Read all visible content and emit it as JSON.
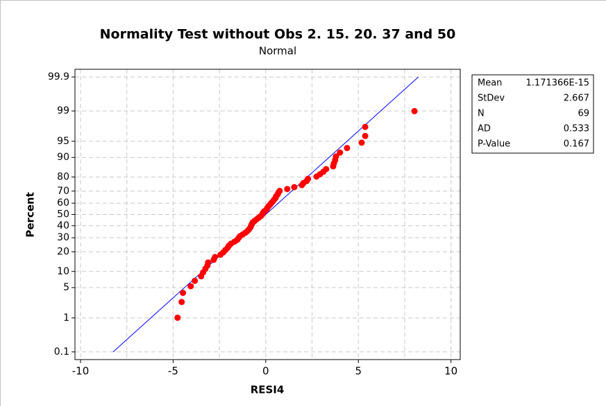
{
  "chart_data": {
    "type": "scatter",
    "title": "Normality Test without Obs 2. 15. 20. 37 and 50",
    "subtitle": "Normal",
    "x_label": "RESI4",
    "y_label": "Percent",
    "y_scale": "probability",
    "grid": true,
    "color": "#ff0000",
    "line_color": "#0000ff",
    "xlim": [
      -10.3,
      10.5
    ],
    "ylim": [
      0.055,
      99.945
    ],
    "xticks": [
      -10,
      -5,
      0,
      5,
      10
    ],
    "xminor_grid": [
      -7.5,
      -2.5,
      2.5,
      7.5
    ],
    "yticks": [
      0.1,
      1,
      5,
      10,
      20,
      30,
      40,
      50,
      60,
      70,
      80,
      90,
      95,
      99,
      99.9
    ],
    "fit_line": {
      "x": [
        -8.24,
        8.24
      ],
      "y": [
        0.1,
        99.9
      ]
    },
    "x": [
      -4.76,
      -4.54,
      -4.47,
      -4.05,
      -3.83,
      -3.49,
      -3.38,
      -3.26,
      -3.15,
      -3.11,
      -2.81,
      -2.74,
      -2.44,
      -2.29,
      -2.18,
      -2.06,
      -1.99,
      -1.88,
      -1.69,
      -1.54,
      -1.46,
      -1.39,
      -1.24,
      -1.09,
      -0.98,
      -0.9,
      -0.83,
      -0.79,
      -0.75,
      -0.71,
      -0.6,
      -0.49,
      -0.38,
      -0.26,
      -0.19,
      -0.15,
      -0.08,
      0.04,
      0.08,
      0.15,
      0.23,
      0.3,
      0.38,
      0.45,
      0.53,
      0.56,
      0.64,
      0.68,
      0.75,
      1.16,
      1.54,
      1.95,
      2.03,
      2.21,
      2.28,
      2.74,
      2.93,
      3.11,
      3.26,
      3.64,
      3.68,
      3.75,
      3.79,
      4.01,
      4.39,
      5.18,
      5.37,
      5.37,
      8.03
    ],
    "values": [
      1.01,
      2.45,
      3.89,
      5.33,
      6.77,
      8.21,
      9.65,
      11.1,
      12.5,
      14.0,
      15.4,
      16.9,
      18.3,
      19.7,
      21.2,
      22.6,
      24.1,
      25.5,
      26.95,
      28.39,
      29.83,
      31.27,
      32.71,
      34.15,
      35.59,
      37.03,
      38.47,
      39.91,
      41.35,
      42.8,
      44.24,
      45.68,
      47.12,
      48.56,
      50.0,
      51.44,
      52.88,
      54.32,
      55.76,
      57.2,
      58.65,
      60.09,
      61.53,
      62.97,
      64.41,
      65.85,
      67.29,
      68.73,
      70.17,
      71.61,
      73.05,
      74.5,
      75.94,
      77.38,
      78.82,
      80.26,
      81.7,
      83.14,
      84.58,
      86.02,
      87.46,
      88.9,
      90.35,
      91.79,
      93.23,
      94.67,
      96.11,
      97.55,
      98.99
    ],
    "stats": [
      {
        "label": "Mean",
        "value": "1.171366E-15"
      },
      {
        "label": "StDev",
        "value": "2.667"
      },
      {
        "label": "N",
        "value": "69"
      },
      {
        "label": "AD",
        "value": "0.533"
      },
      {
        "label": "P-Value",
        "value": "0.167"
      }
    ]
  }
}
